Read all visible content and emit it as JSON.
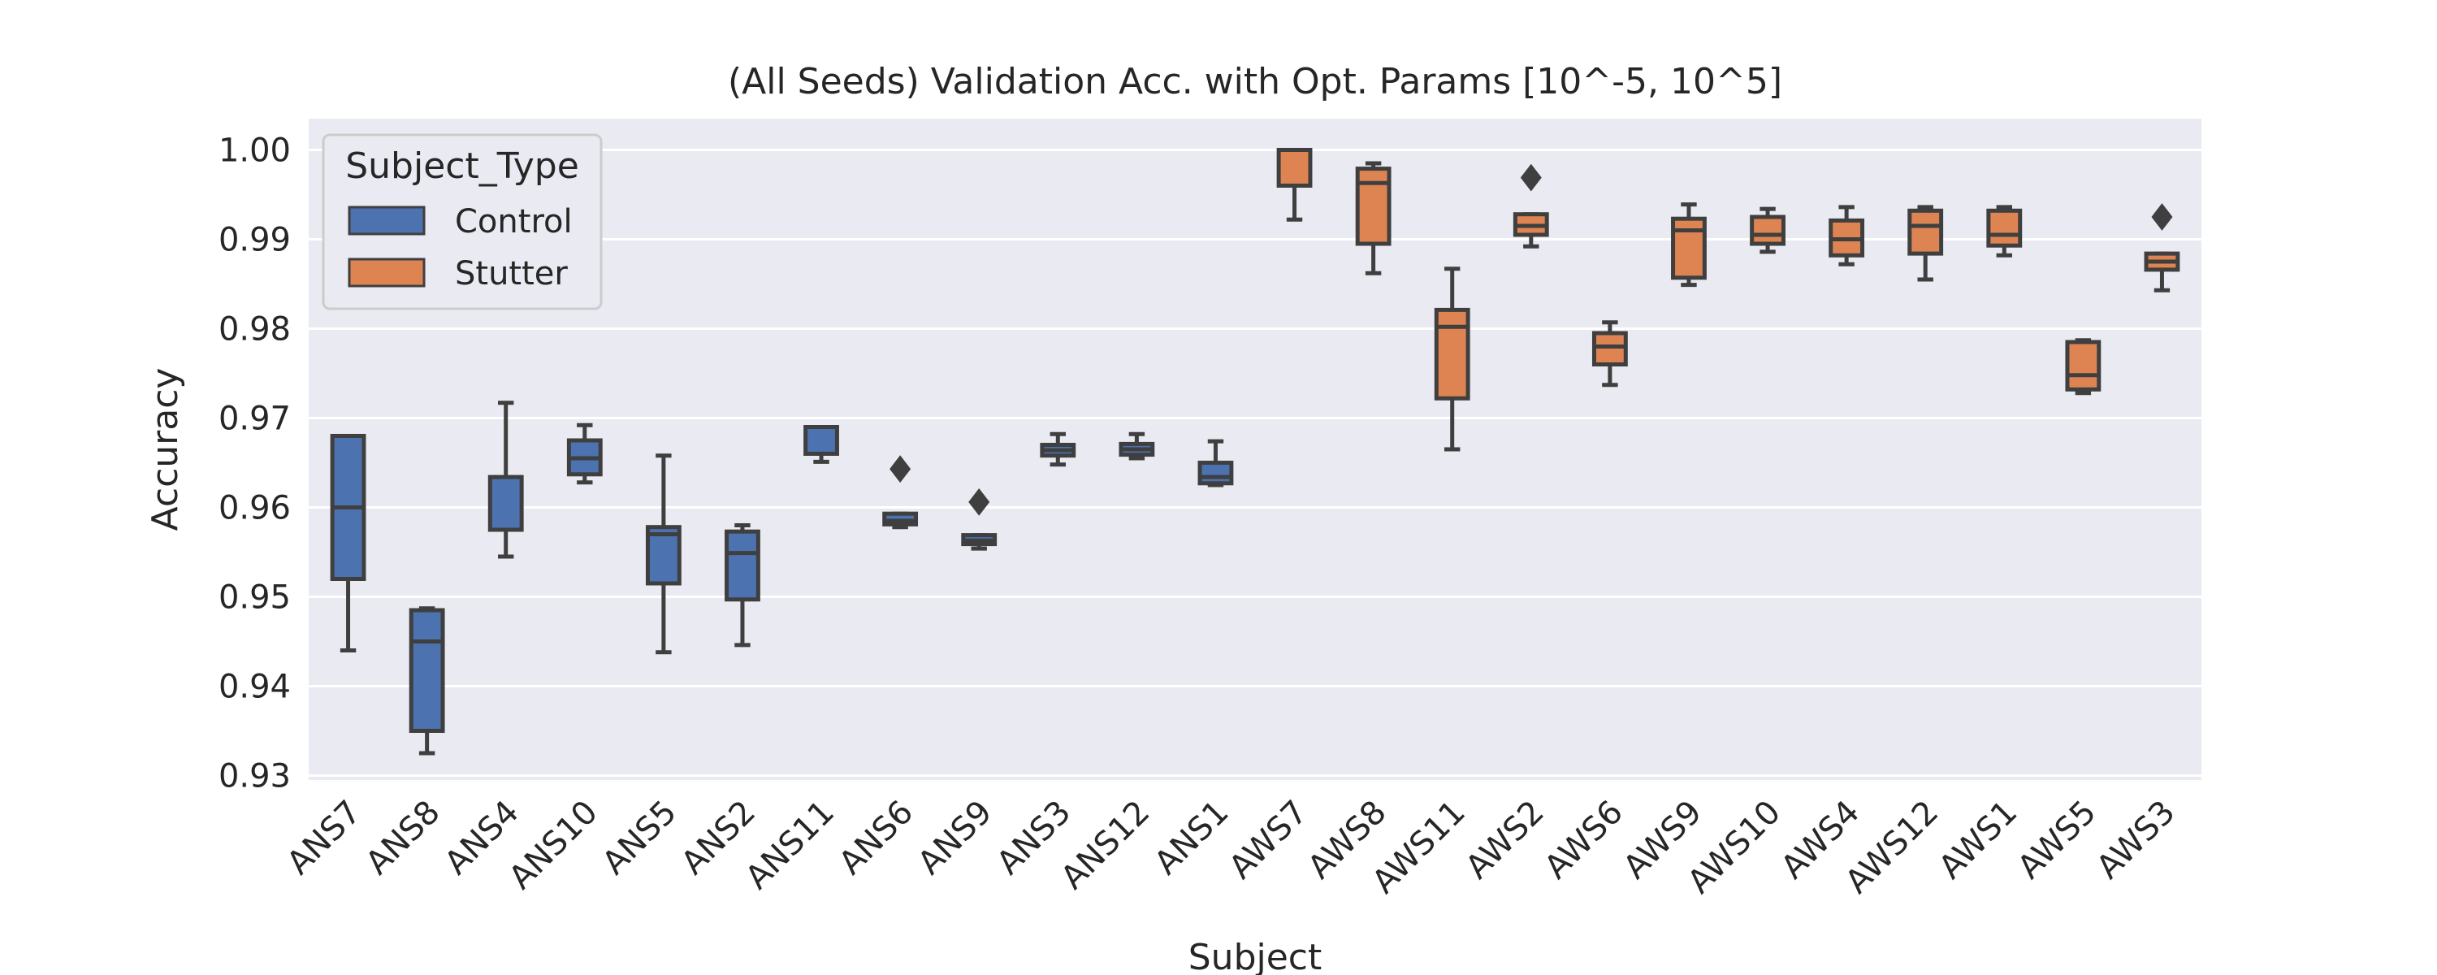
{
  "chart_data": {
    "type": "box",
    "title": "(All Seeds) Validation Acc. with Opt. Params [10^-5, 10^5]",
    "xlabel": "Subject",
    "ylabel": "Accuracy",
    "ylim": [
      0.9295,
      1.0035
    ],
    "yticks": [
      "0.93",
      "0.94",
      "0.95",
      "0.96",
      "0.97",
      "0.98",
      "0.99",
      "1.00"
    ],
    "ytick_values": [
      0.93,
      0.94,
      0.95,
      0.96,
      0.97,
      0.98,
      0.99,
      1.0
    ],
    "grid": true,
    "legend": {
      "title": "Subject_Type",
      "placement": "top-left",
      "entries": [
        {
          "name": "Control",
          "color": "#4c72b0"
        },
        {
          "name": "Stutter",
          "color": "#dd8452"
        }
      ]
    },
    "series": [
      {
        "name": "Control",
        "color": "#4c72b0",
        "boxes": [
          {
            "label": "ANS7",
            "whislo": 0.944,
            "q1": 0.952,
            "med": 0.96,
            "q3": 0.968,
            "whishi": 0.968,
            "fliers": []
          },
          {
            "label": "ANS8",
            "whislo": 0.9325,
            "q1": 0.935,
            "med": 0.945,
            "q3": 0.9485,
            "whishi": 0.9487,
            "fliers": []
          },
          {
            "label": "ANS4",
            "whislo": 0.9545,
            "q1": 0.9575,
            "med": 0.9575,
            "q3": 0.9634,
            "whishi": 0.9717,
            "fliers": []
          },
          {
            "label": "ANS10",
            "whislo": 0.9628,
            "q1": 0.9637,
            "med": 0.9655,
            "q3": 0.9675,
            "whishi": 0.9692,
            "fliers": []
          },
          {
            "label": "ANS5",
            "whislo": 0.9438,
            "q1": 0.9515,
            "med": 0.957,
            "q3": 0.9578,
            "whishi": 0.9658,
            "fliers": []
          },
          {
            "label": "ANS2",
            "whislo": 0.9446,
            "q1": 0.9497,
            "med": 0.9549,
            "q3": 0.9573,
            "whishi": 0.958,
            "fliers": []
          },
          {
            "label": "ANS11",
            "whislo": 0.9651,
            "q1": 0.966,
            "med": 0.966,
            "q3": 0.969,
            "whishi": 0.969,
            "fliers": []
          },
          {
            "label": "ANS6",
            "whislo": 0.9578,
            "q1": 0.9581,
            "med": 0.9585,
            "q3": 0.9593,
            "whishi": 0.9593,
            "fliers": [
              0.9643
            ]
          },
          {
            "label": "ANS9",
            "whislo": 0.9554,
            "q1": 0.9559,
            "med": 0.9563,
            "q3": 0.9569,
            "whishi": 0.9569,
            "fliers": [
              0.9606
            ]
          },
          {
            "label": "ANS3",
            "whislo": 0.9648,
            "q1": 0.9658,
            "med": 0.9664,
            "q3": 0.967,
            "whishi": 0.9682,
            "fliers": []
          },
          {
            "label": "ANS12",
            "whislo": 0.9655,
            "q1": 0.9659,
            "med": 0.9665,
            "q3": 0.9671,
            "whishi": 0.9682,
            "fliers": []
          },
          {
            "label": "ANS1",
            "whislo": 0.9625,
            "q1": 0.9627,
            "med": 0.9634,
            "q3": 0.965,
            "whishi": 0.9674,
            "fliers": []
          }
        ]
      },
      {
        "name": "Stutter",
        "color": "#dd8452",
        "boxes": [
          {
            "label": "AWS7",
            "whislo": 0.9922,
            "q1": 0.996,
            "med": 1.0,
            "q3": 1.0,
            "whishi": 1.0,
            "fliers": []
          },
          {
            "label": "AWS8",
            "whislo": 0.9862,
            "q1": 0.9895,
            "med": 0.9963,
            "q3": 0.9979,
            "whishi": 0.9985,
            "fliers": []
          },
          {
            "label": "AWS11",
            "whislo": 0.9665,
            "q1": 0.9722,
            "med": 0.9802,
            "q3": 0.9821,
            "whishi": 0.9867,
            "fliers": []
          },
          {
            "label": "AWS2",
            "whislo": 0.9892,
            "q1": 0.9905,
            "med": 0.9915,
            "q3": 0.9928,
            "whishi": 0.9928,
            "fliers": [
              0.9969
            ]
          },
          {
            "label": "AWS6",
            "whislo": 0.9737,
            "q1": 0.976,
            "med": 0.978,
            "q3": 0.9795,
            "whishi": 0.9807,
            "fliers": []
          },
          {
            "label": "AWS9",
            "whislo": 0.9849,
            "q1": 0.9857,
            "med": 0.991,
            "q3": 0.9923,
            "whishi": 0.9939,
            "fliers": []
          },
          {
            "label": "AWS10",
            "whislo": 0.9886,
            "q1": 0.9895,
            "med": 0.9905,
            "q3": 0.9925,
            "whishi": 0.9934,
            "fliers": []
          },
          {
            "label": "AWS4",
            "whislo": 0.9872,
            "q1": 0.9882,
            "med": 0.99,
            "q3": 0.9921,
            "whishi": 0.9936,
            "fliers": []
          },
          {
            "label": "AWS12",
            "whislo": 0.9855,
            "q1": 0.9884,
            "med": 0.9915,
            "q3": 0.9932,
            "whishi": 0.9936,
            "fliers": []
          },
          {
            "label": "AWS1",
            "whislo": 0.9882,
            "q1": 0.9893,
            "med": 0.9905,
            "q3": 0.9932,
            "whishi": 0.9936,
            "fliers": []
          },
          {
            "label": "AWS5",
            "whislo": 0.9728,
            "q1": 0.9732,
            "med": 0.9748,
            "q3": 0.9785,
            "whishi": 0.9787,
            "fliers": []
          },
          {
            "label": "AWS3",
            "whislo": 0.9843,
            "q1": 0.9866,
            "med": 0.9875,
            "q3": 0.9884,
            "whishi": 0.9884,
            "fliers": [
              0.9925
            ]
          }
        ]
      }
    ]
  }
}
